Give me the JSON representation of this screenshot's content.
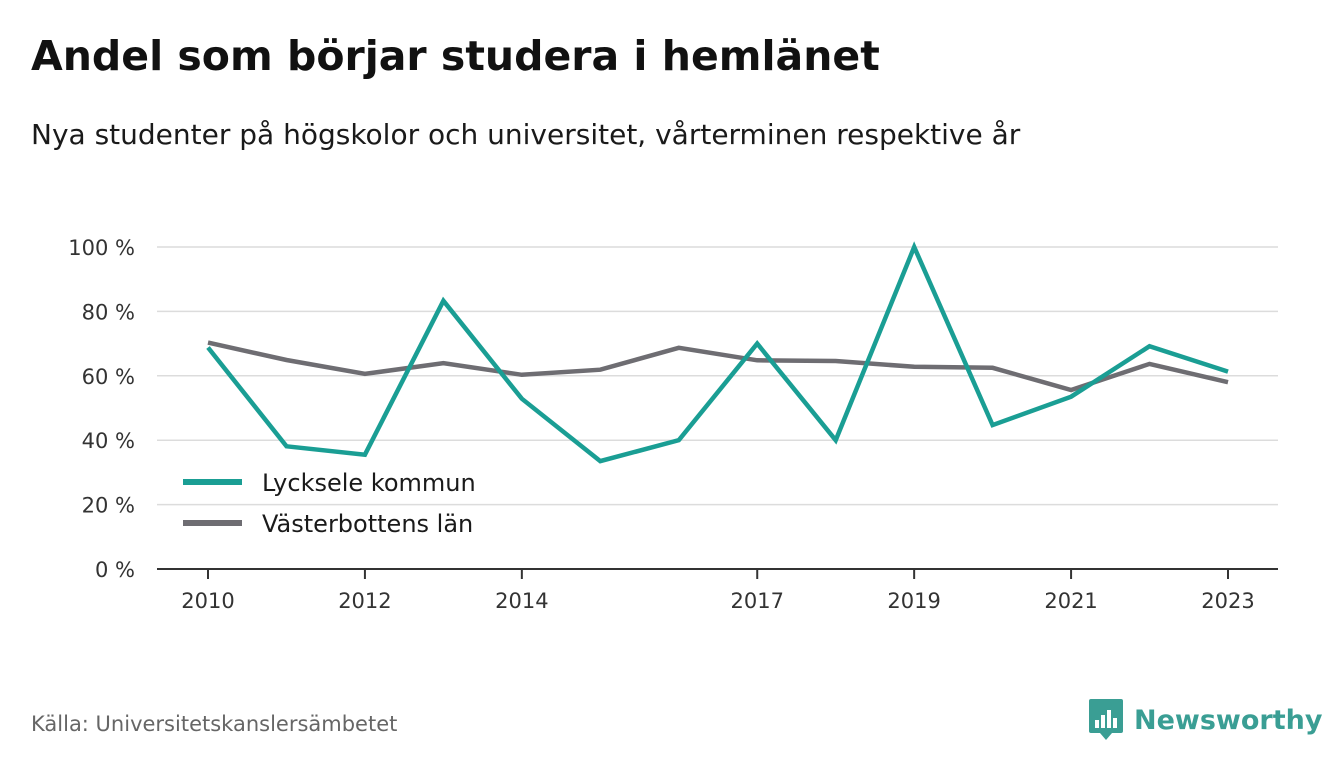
{
  "title": "Andel som börjar studera i hemlänet",
  "subtitle": "Nya studenter på högskolor och universitet, vårterminen respektive år",
  "source": "Källa: Universitetskanslersämbetet",
  "brand": {
    "name": "Newsworthy",
    "icon": "newsworthy-logo-icon",
    "color": "#3a9e94"
  },
  "chart_data": {
    "type": "line",
    "x": [
      2010,
      2011,
      2012,
      2013,
      2014,
      2015,
      2016,
      2017,
      2018,
      2019,
      2020,
      2021,
      2022,
      2023
    ],
    "x_ticks": [
      2010,
      2012,
      2014,
      2017,
      2019,
      2021,
      2023
    ],
    "x_tick_labels": [
      "2010",
      "2012",
      "2014",
      "2017",
      "2019",
      "2021",
      "2023"
    ],
    "y_ticks": [
      0,
      20,
      40,
      60,
      80,
      100
    ],
    "y_tick_labels": [
      "0 %",
      "20 %",
      "40 %",
      "60 %",
      "80 %",
      "100 %"
    ],
    "ylim": [
      0,
      100
    ],
    "grid": true,
    "legend_position": "bottom-left",
    "series": [
      {
        "name": "Lycksele kommun",
        "color": "#1a9e94",
        "values": [
          68.8,
          38.1,
          35.5,
          83.3,
          52.9,
          33.5,
          40.0,
          70.0,
          40.0,
          100.0,
          44.7,
          53.5,
          69.2,
          61.3
        ]
      },
      {
        "name": "Västerbottens län",
        "color": "#6e6d72",
        "values": [
          70.3,
          64.9,
          60.6,
          63.9,
          60.3,
          61.9,
          68.7,
          64.8,
          64.6,
          62.8,
          62.5,
          55.6,
          63.7,
          58.0
        ]
      }
    ]
  }
}
